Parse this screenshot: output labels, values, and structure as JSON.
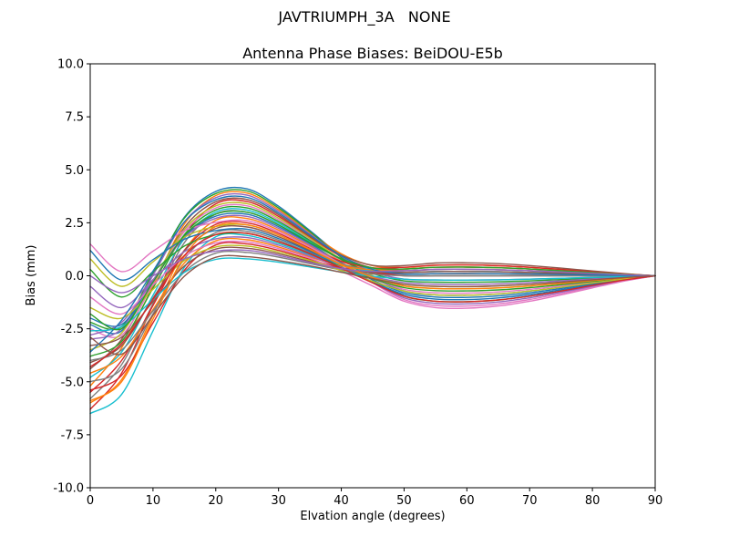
{
  "figure": {
    "suptitle": "JAVTRIUMPH_3A   NONE",
    "background": "#ffffff"
  },
  "chart_data": {
    "type": "line",
    "title": "Antenna Phase Biases: BeiDOU-E5b",
    "xlabel": "Elvation angle (degrees)",
    "ylabel": "Bias (mm)",
    "xlim": [
      0,
      90
    ],
    "ylim": [
      -10.0,
      10.0
    ],
    "xticks": [
      0,
      10,
      20,
      30,
      40,
      50,
      60,
      70,
      80,
      90
    ],
    "ytick_labels": [
      "10.0",
      "7.5",
      "5.0",
      "2.5",
      "0.0",
      "-2.5",
      "-5.0",
      "-7.5",
      "-10.0"
    ],
    "grid": false,
    "legend": "none",
    "spine_color": "#000000",
    "description": "Family of ~36 unlabeled antenna phase bias curves: start between -6.5 and +1.5 mm at 0 deg, rise to a peak of 0.8 to 4.1 mm near 20-25 deg, dip to between -1.5 and +0.6 mm near 50-65 deg, converge to 0 mm at 90 deg",
    "x_knots": [
      0,
      5,
      10,
      15,
      20,
      25,
      30,
      35,
      40,
      45,
      50,
      55,
      60,
      65,
      70,
      75,
      80,
      85,
      90
    ],
    "shape": {
      "knot_formula": [
        {
          "y0": 1
        },
        {
          "y5": 1
        },
        {
          "y5": 0.6,
          "peak": 0.4
        },
        {
          "y5": 0.2,
          "peak": 0.8
        },
        {
          "peak": 0.97
        },
        {
          "peak": 1
        },
        {
          "peak": 0.8
        },
        {
          "peak": 0.52
        },
        {
          "peak": 0.25,
          "trough": 0.12
        },
        {
          "peak": 0.07,
          "trough": 0.4
        },
        {
          "trough": 0.8
        },
        {
          "trough": 1
        },
        {
          "trough": 1.02
        },
        {
          "trough": 0.95
        },
        {
          "trough": 0.8
        },
        {
          "trough": 0.6
        },
        {
          "trough": 0.38
        },
        {
          "trough": 0.17
        },
        {}
      ]
    },
    "series": [
      {
        "color": "#1f77b4",
        "y0": -2.3,
        "y5": -2.6,
        "peak": 4.1,
        "trough": -0.9
      },
      {
        "color": "#ff7f0e",
        "y0": -5.2,
        "y5": -3.4,
        "peak": 3.9,
        "trough": 0.5
      },
      {
        "color": "#2ca02c",
        "y0": -2.2,
        "y5": -2.4,
        "peak": 4.0,
        "trough": -1.2
      },
      {
        "color": "#d62728",
        "y0": -6.3,
        "y5": -4.6,
        "peak": 3.5,
        "trough": 0.3
      },
      {
        "color": "#9467bd",
        "y0": -3.0,
        "y5": -2.5,
        "peak": 3.8,
        "trough": -0.2
      },
      {
        "color": "#8c564b",
        "y0": -4.4,
        "y5": -3.0,
        "peak": 3.6,
        "trough": 0.6
      },
      {
        "color": "#e377c2",
        "y0": -2.5,
        "y5": -2.8,
        "peak": 3.3,
        "trough": -1.4
      },
      {
        "color": "#7f7f7f",
        "y0": -5.8,
        "y5": -4.2,
        "peak": 3.0,
        "trough": 0.4
      },
      {
        "color": "#bcbd22",
        "y0": -3.5,
        "y5": -2.7,
        "peak": 3.4,
        "trough": -0.6
      },
      {
        "color": "#17becf",
        "y0": -4.8,
        "y5": -3.6,
        "peak": 3.1,
        "trough": 0.2
      },
      {
        "color": "#1f77b4",
        "y0": -2.0,
        "y5": -2.3,
        "peak": 2.9,
        "trough": -1.0
      },
      {
        "color": "#ff7f0e",
        "y0": -6.0,
        "y5": -4.9,
        "peak": 2.7,
        "trough": 0.1
      },
      {
        "color": "#2ca02c",
        "y0": -3.8,
        "y5": -3.1,
        "peak": 3.2,
        "trough": -0.3
      },
      {
        "color": "#d62728",
        "y0": -5.5,
        "y5": -4.0,
        "peak": 2.5,
        "trough": 0.5
      },
      {
        "color": "#9467bd",
        "y0": -2.8,
        "y5": -2.2,
        "peak": 2.8,
        "trough": -1.3
      },
      {
        "color": "#8c564b",
        "y0": -4.1,
        "y5": -3.3,
        "peak": 2.3,
        "trough": 0.0
      },
      {
        "color": "#e377c2",
        "y0": 1.5,
        "y5": 0.2,
        "peak": 2.6,
        "trough": -0.8
      },
      {
        "color": "#7f7f7f",
        "y0": -5.0,
        "y5": -4.4,
        "peak": 2.1,
        "trough": 0.3
      },
      {
        "color": "#bcbd22",
        "y0": 0.8,
        "y5": -0.5,
        "peak": 2.4,
        "trough": -0.5
      },
      {
        "color": "#17becf",
        "y0": -6.5,
        "y5": -5.6,
        "peak": 1.9,
        "trough": 0.2
      },
      {
        "color": "#1f77b4",
        "y0": 1.2,
        "y5": -0.2,
        "peak": 2.2,
        "trough": -1.1
      },
      {
        "color": "#ff7f0e",
        "y0": -4.6,
        "y5": -3.8,
        "peak": 1.7,
        "trough": 0.4
      },
      {
        "color": "#2ca02c",
        "y0": 0.3,
        "y5": -1.0,
        "peak": 2.0,
        "trough": -0.7
      },
      {
        "color": "#d62728",
        "y0": -5.4,
        "y5": -4.7,
        "peak": 1.5,
        "trough": 0.1
      },
      {
        "color": "#9467bd",
        "y0": -0.5,
        "y5": -1.5,
        "peak": 1.8,
        "trough": -0.4
      },
      {
        "color": "#8c564b",
        "y0": -3.3,
        "y5": -2.9,
        "peak": 1.3,
        "trough": 0.2
      },
      {
        "color": "#e377c2",
        "y0": -1.0,
        "y5": -1.8,
        "peak": 1.6,
        "trough": -1.5
      },
      {
        "color": "#7f7f7f",
        "y0": -4.0,
        "y5": -3.5,
        "peak": 1.1,
        "trough": 0.0
      },
      {
        "color": "#bcbd22",
        "y0": -1.5,
        "y5": -2.0,
        "peak": 1.4,
        "trough": -0.9
      },
      {
        "color": "#17becf",
        "y0": -2.6,
        "y5": -2.4,
        "peak": 0.8,
        "trough": -0.2
      },
      {
        "color": "#1f77b4",
        "y0": -3.6,
        "y5": -2.1,
        "peak": 3.7,
        "trough": 0.1
      },
      {
        "color": "#ff7f0e",
        "y0": -5.9,
        "y5": -5.0,
        "peak": 2.4,
        "trough": -0.6
      },
      {
        "color": "#2ca02c",
        "y0": -1.8,
        "y5": -2.5,
        "peak": 3.0,
        "trough": 0.4
      },
      {
        "color": "#d62728",
        "y0": -4.3,
        "y5": -3.2,
        "peak": 2.0,
        "trough": -1.2
      },
      {
        "color": "#9467bd",
        "y0": 0.0,
        "y5": -0.8,
        "peak": 1.2,
        "trough": 0.3
      },
      {
        "color": "#8c564b",
        "y0": -2.9,
        "y5": -3.7,
        "peak": 0.9,
        "trough": -0.5
      }
    ]
  }
}
